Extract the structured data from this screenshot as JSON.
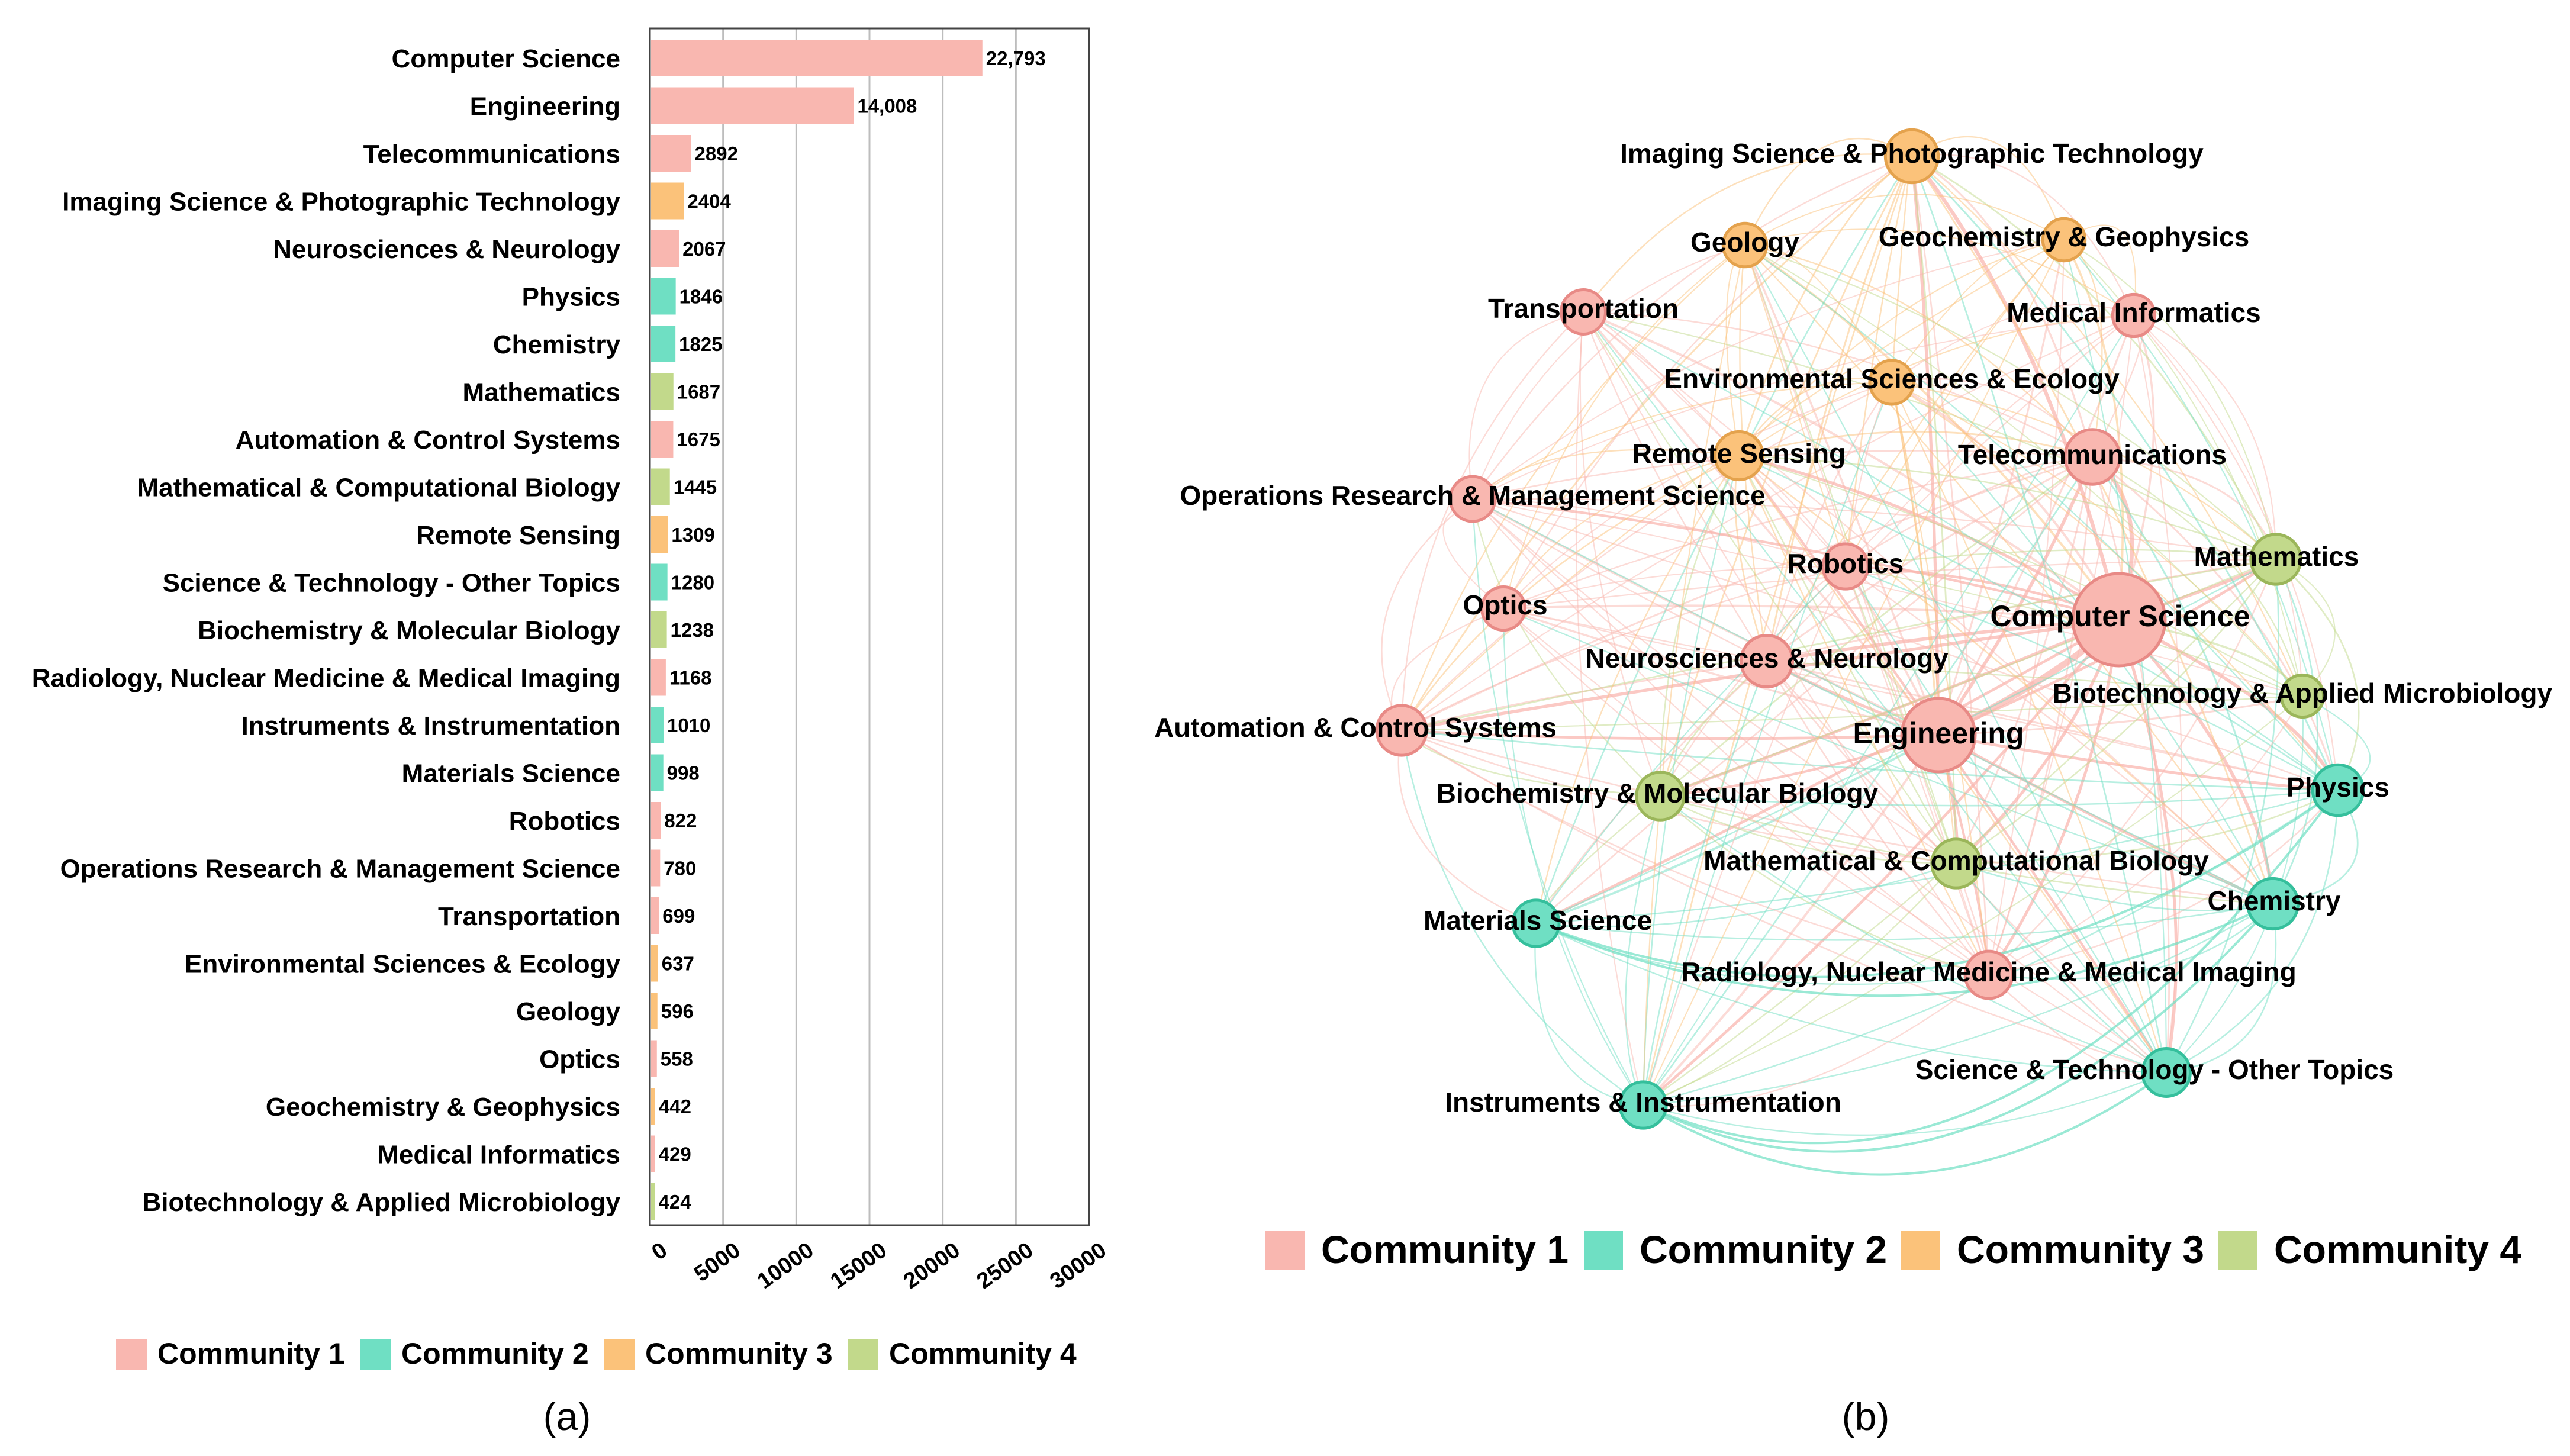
{
  "colors": {
    "c1": "#f9b7b0",
    "c2": "#6fdfc3",
    "c3": "#fbc27a",
    "c4": "#c2d98b",
    "c1_stroke": "#e88a86",
    "c2_stroke": "#35bf9c",
    "c3_stroke": "#e4a24d",
    "c4_stroke": "#9bb65a",
    "grid": "#bdbdbd",
    "text": "#000000"
  },
  "chart_data": [
    {
      "type": "bar",
      "orientation": "horizontal",
      "panel_label": "(a)",
      "categories": [
        "Computer Science",
        "Engineering",
        "Telecommunications",
        "Imaging Science & Photographic Technology",
        "Neurosciences & Neurology",
        "Physics",
        "Chemistry",
        "Mathematics",
        "Automation & Control Systems",
        "Mathematical & Computational Biology",
        "Remote Sensing",
        "Science & Technology - Other Topics",
        "Biochemistry & Molecular Biology",
        "Radiology, Nuclear Medicine & Medical Imaging",
        "Instruments & Instrumentation",
        "Materials Science",
        "Robotics",
        "Operations Research & Management Science",
        "Transportation",
        "Environmental Sciences & Ecology",
        "Geology",
        "Optics",
        "Geochemistry & Geophysics",
        "Medical Informatics",
        "Biotechnology & Applied Microbiology"
      ],
      "values": [
        22793,
        14008,
        2892,
        2404,
        2067,
        1846,
        1825,
        1687,
        1675,
        1445,
        1309,
        1280,
        1238,
        1168,
        1010,
        998,
        822,
        780,
        699,
        637,
        596,
        558,
        442,
        429,
        424
      ],
      "value_labels": [
        "22,793",
        "14,008",
        "2892",
        "2404",
        "2067",
        "1846",
        "1825",
        "1687",
        "1675",
        "1445",
        "1309",
        "1280",
        "1238",
        "1168",
        "1010",
        "998",
        "822",
        "780",
        "699",
        "637",
        "596",
        "558",
        "442",
        "429",
        "424"
      ],
      "community": [
        1,
        1,
        1,
        3,
        1,
        2,
        2,
        4,
        1,
        4,
        3,
        2,
        4,
        1,
        2,
        2,
        1,
        1,
        1,
        3,
        3,
        1,
        3,
        1,
        4
      ],
      "xlim": [
        0,
        30000
      ],
      "xticks": [
        0,
        5000,
        10000,
        15000,
        20000,
        25000,
        30000
      ],
      "xtick_labels": [
        "0",
        "5000",
        "10000",
        "15000",
        "20000",
        "25000",
        "30000"
      ],
      "grid": true,
      "legend": [
        "Community 1",
        "Community 2",
        "Community 3",
        "Community 4"
      ],
      "legend_position": "bottom"
    },
    {
      "type": "network",
      "panel_label": "(b)",
      "nodes": [
        {
          "name": "Computer Science",
          "community": 1,
          "weight": 22793
        },
        {
          "name": "Engineering",
          "community": 1,
          "weight": 14008
        },
        {
          "name": "Telecommunications",
          "community": 1,
          "weight": 2892
        },
        {
          "name": "Imaging Science & Photographic Technology",
          "community": 3,
          "weight": 2404
        },
        {
          "name": "Neurosciences & Neurology",
          "community": 1,
          "weight": 2067
        },
        {
          "name": "Physics",
          "community": 2,
          "weight": 1846
        },
        {
          "name": "Chemistry",
          "community": 2,
          "weight": 1825
        },
        {
          "name": "Mathematics",
          "community": 4,
          "weight": 1687
        },
        {
          "name": "Automation & Control Systems",
          "community": 1,
          "weight": 1675
        },
        {
          "name": "Mathematical & Computational Biology",
          "community": 4,
          "weight": 1445
        },
        {
          "name": "Remote Sensing",
          "community": 3,
          "weight": 1309
        },
        {
          "name": "Science & Technology - Other Topics",
          "community": 2,
          "weight": 1280
        },
        {
          "name": "Biochemistry & Molecular Biology",
          "community": 4,
          "weight": 1238
        },
        {
          "name": "Radiology, Nuclear Medicine & Medical Imaging",
          "community": 1,
          "weight": 1168
        },
        {
          "name": "Instruments & Instrumentation",
          "community": 2,
          "weight": 1010
        },
        {
          "name": "Materials Science",
          "community": 2,
          "weight": 998
        },
        {
          "name": "Robotics",
          "community": 1,
          "weight": 822
        },
        {
          "name": "Operations Research & Management Science",
          "community": 1,
          "weight": 780
        },
        {
          "name": "Transportation",
          "community": 1,
          "weight": 699
        },
        {
          "name": "Environmental Sciences & Ecology",
          "community": 3,
          "weight": 637
        },
        {
          "name": "Geology",
          "community": 3,
          "weight": 596
        },
        {
          "name": "Optics",
          "community": 1,
          "weight": 558
        },
        {
          "name": "Geochemistry & Geophysics",
          "community": 3,
          "weight": 442
        },
        {
          "name": "Medical Informatics",
          "community": 1,
          "weight": 429
        },
        {
          "name": "Biotechnology & Applied Microbiology",
          "community": 4,
          "weight": 424
        }
      ],
      "legend": [
        "Community 1",
        "Community 2",
        "Community 3",
        "Community 4"
      ],
      "legend_position": "bottom"
    }
  ]
}
